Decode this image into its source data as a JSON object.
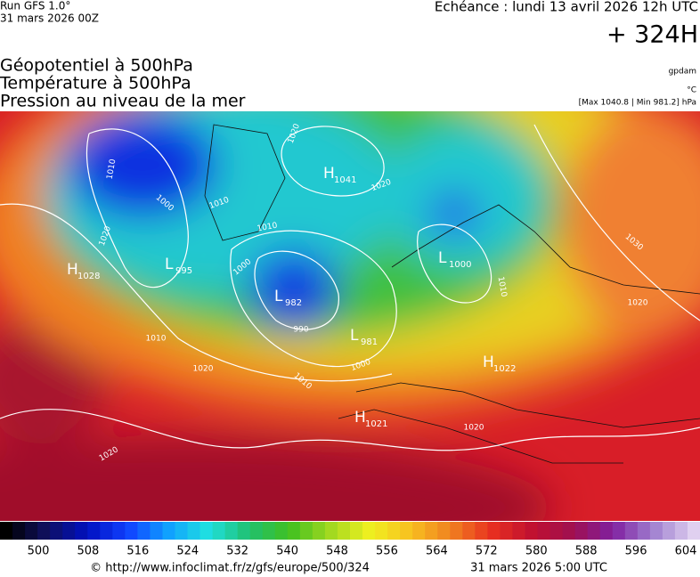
{
  "header": {
    "run": "Run GFS 1.0°",
    "run_date": "31 mars 2026 00Z",
    "valid": "Echéance : lundi 13 avril 2026 12h UTC",
    "lead": "+ 324H"
  },
  "legend": {
    "lines": [
      "Géopotentiel à 500hPa",
      "Température à 500hPa",
      "Pression au niveau de la mer"
    ],
    "units": [
      "gpdam",
      "°C",
      "[Max 1040.8 | Min 981.2] hPa"
    ]
  },
  "pressure_centers": [
    {
      "type": "H",
      "value": "1028"
    },
    {
      "type": "L",
      "value": "995"
    },
    {
      "type": "H",
      "value": "1041"
    },
    {
      "type": "L",
      "value": "982"
    },
    {
      "type": "L",
      "value": "981"
    },
    {
      "type": "L",
      "value": "1000"
    },
    {
      "type": "H",
      "value": "1022"
    },
    {
      "type": "H",
      "value": "1021"
    }
  ],
  "isobar_labels": [
    "1010",
    "1000",
    "1020",
    "1010",
    "1020",
    "1010",
    "1000",
    "990",
    "1010",
    "1000",
    "1020",
    "1020",
    "1020",
    "1010",
    "1030",
    "1020",
    "1010",
    "1020"
  ],
  "colorbar": {
    "ticks": [
      500,
      508,
      516,
      524,
      532,
      540,
      548,
      556,
      564,
      572,
      580,
      588,
      596,
      604
    ]
  },
  "footer": {
    "copyright": "© http://www.infoclimat.fr/z/gfs/europe/500/324",
    "generated": "31 mars 2026  5:00 UTC"
  }
}
